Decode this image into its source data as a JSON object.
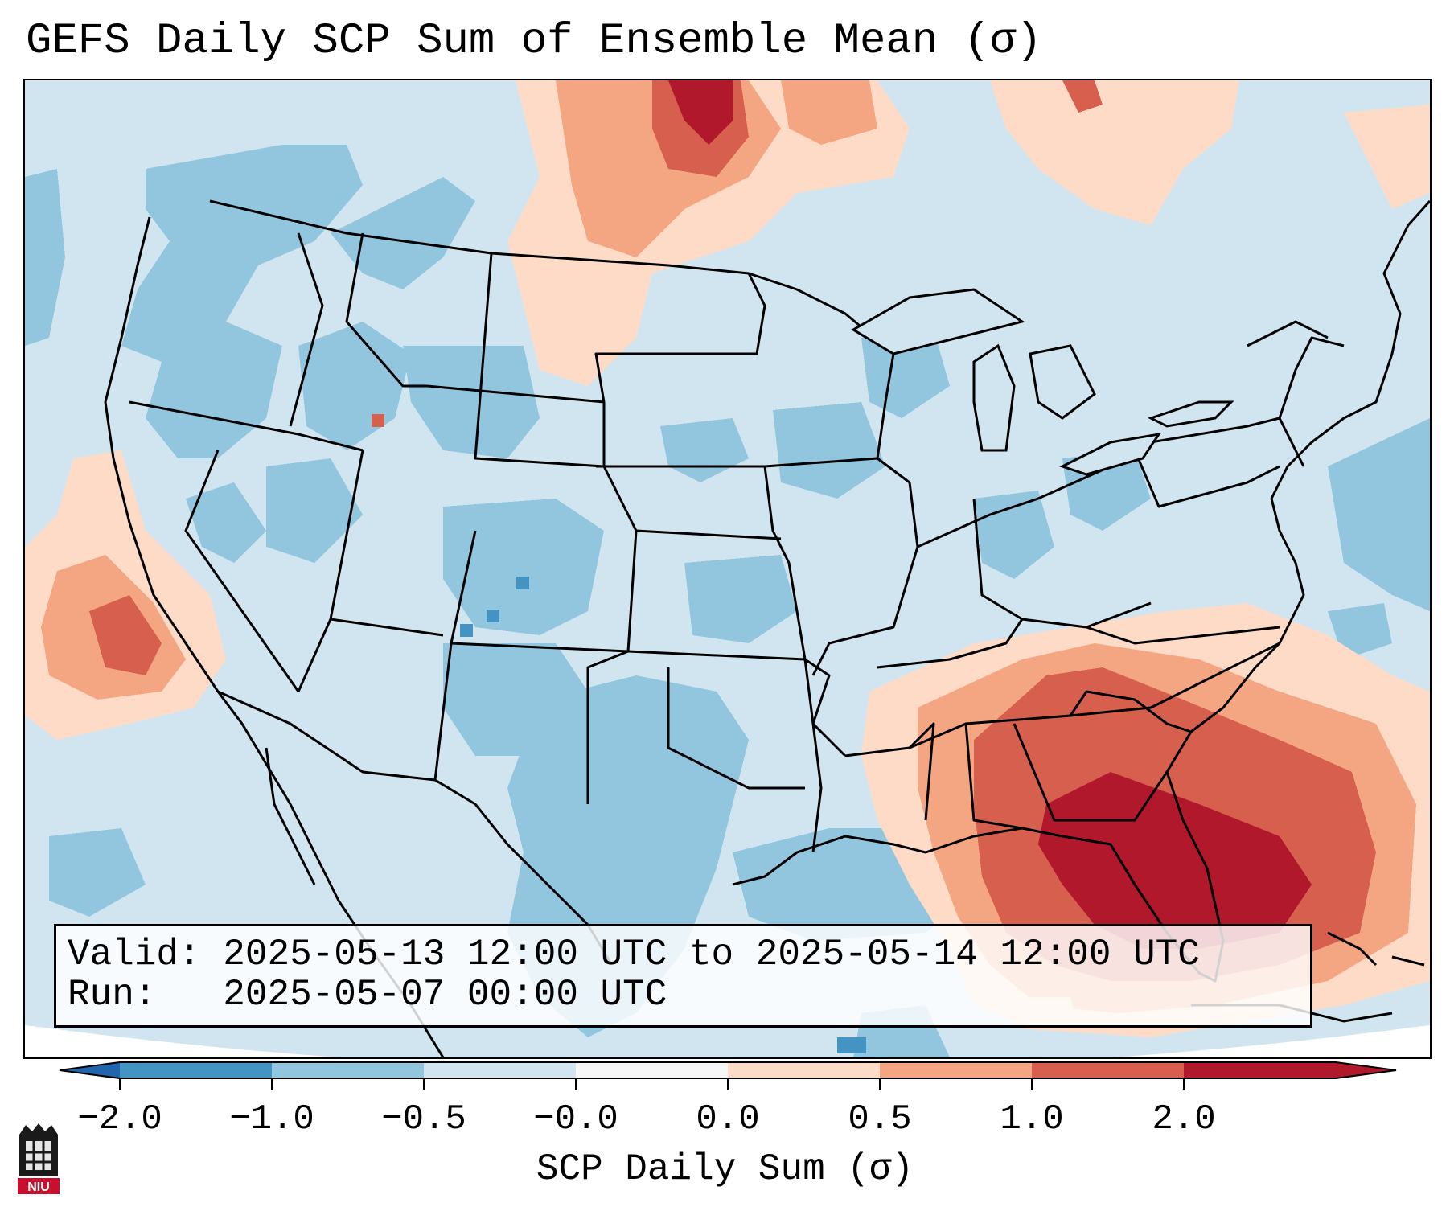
{
  "title": "GEFS Daily SCP Sum of Ensemble Mean (σ)",
  "info": {
    "valid_label": "Valid:",
    "valid_text": "2025-05-13 12:00 UTC to 2025-05-14 12:00 UTC",
    "run_label": "Run:",
    "run_text": "2025-05-07 00:00 UTC"
  },
  "colorbar": {
    "label": "SCP Daily Sum (σ)",
    "ticks": [
      "−2.0",
      "−1.0",
      "−0.5",
      "−0.0",
      "0.0",
      "0.5",
      "1.0",
      "2.0"
    ],
    "colors": [
      "#4393c3",
      "#92c5de",
      "#d1e5f0",
      "#f7f7f7",
      "#fddbc7",
      "#f4a582",
      "#d6604d",
      "#b2182b"
    ],
    "under_color": "#2166ac",
    "over_color": "#b2182b"
  },
  "map": {
    "background_color": "#d1e5f0",
    "state_line_color": "#000000",
    "regions": [
      {
        "name": "Gulf/Florida maximum",
        "level": "2.0",
        "color": "#b2182b"
      },
      {
        "name": "Georgia / South Carolina",
        "level": "1.0",
        "color": "#d6604d"
      },
      {
        "name": "Northern Plains / Montana border",
        "level": "1.0",
        "color": "#d6604d"
      },
      {
        "name": "California offshore",
        "level": "0.5",
        "color": "#f4a582"
      },
      {
        "name": "Rockies / West",
        "level": "-1.0",
        "color": "#92c5de"
      },
      {
        "name": "Texas",
        "level": "-1.0",
        "color": "#92c5de"
      }
    ]
  },
  "logo": {
    "text": "NIU",
    "color": "#c8102e"
  }
}
